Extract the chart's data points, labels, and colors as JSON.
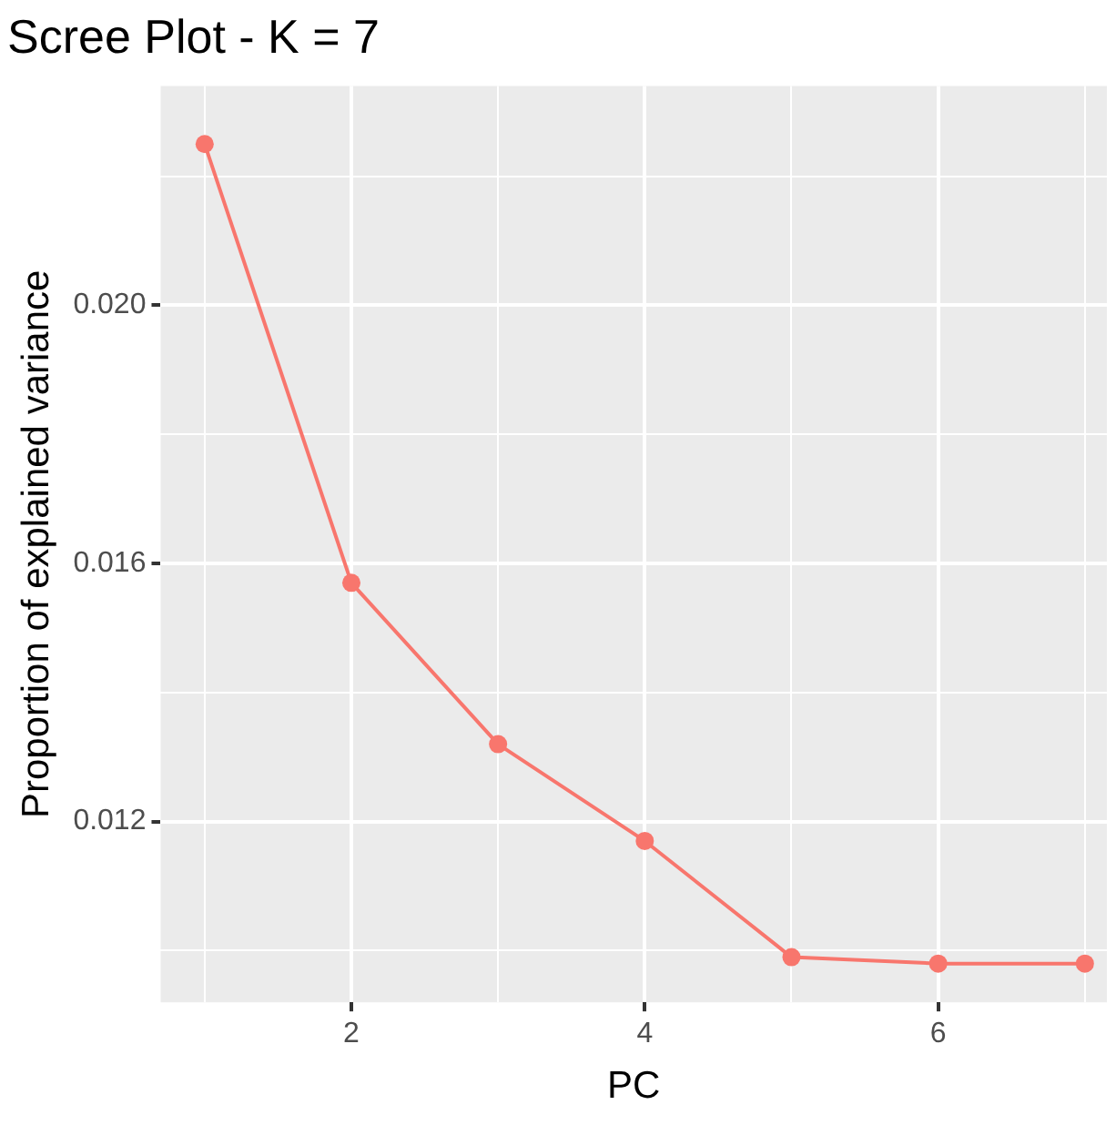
{
  "chart_data": {
    "type": "line",
    "title": "Scree Plot - K = 7",
    "xlabel": "PC",
    "ylabel": "Proportion of explained variance",
    "x": [
      1,
      2,
      3,
      4,
      5,
      6,
      7
    ],
    "series": [
      {
        "color": "#f8766d",
        "values": [
          0.0225,
          0.0157,
          0.0132,
          0.0117,
          0.0099,
          0.0098,
          0.0098
        ]
      }
    ],
    "xlim": [
      0.7,
      7.15
    ],
    "xticks": [
      {
        "value": 1,
        "label": null
      },
      2,
      {
        "value": 3,
        "label": null
      },
      4,
      {
        "value": 5,
        "label": null
      },
      6,
      {
        "value": 7,
        "label": null
      }
    ],
    "ylim": [
      0.0092,
      0.0234
    ],
    "yticks": [
      {
        "value": 0.01,
        "label": null
      },
      {
        "value": 0.012,
        "label": "0.012"
      },
      {
        "value": 0.014,
        "label": null
      },
      {
        "value": 0.016,
        "label": "0.016"
      },
      {
        "value": 0.018,
        "label": null
      },
      {
        "value": 0.02,
        "label": "0.020"
      },
      {
        "value": 0.022,
        "label": null
      }
    ],
    "grid": true,
    "legend": false,
    "marker": "circle",
    "line_style": "solid"
  }
}
